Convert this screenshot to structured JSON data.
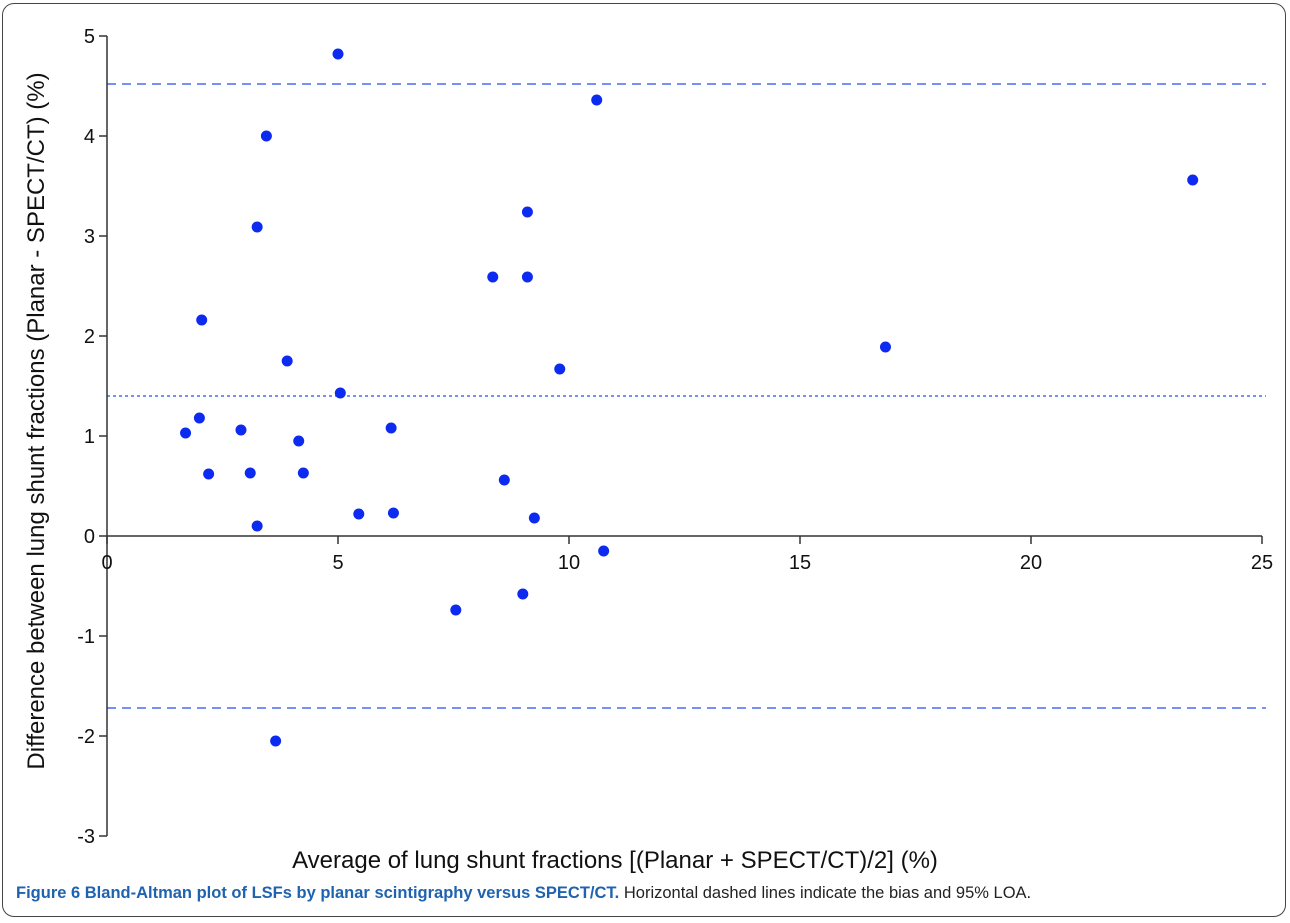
{
  "figure": {
    "caption_title": "Figure 6 Bland-Altman plot of LSFs by planar scintigraphy versus SPECT/CT.",
    "caption_text": "Horizontal dashed lines indicate the bias and 95% LOA."
  },
  "colors": {
    "points": "#0d2bf0",
    "reference_lines": "#4a6cf0",
    "axis": "#333333",
    "caption_title": "#1f63b0"
  },
  "chart_data": {
    "type": "scatter",
    "title": "",
    "xlabel": "Average of lung shunt fractions [(Planar + SPECT/CT)/2] (%)",
    "ylabel": "Difference between lung shunt fractions (Planar - SPECT/CT) (%)",
    "xlim": [
      0,
      25
    ],
    "ylim": [
      -3,
      5
    ],
    "x_ticks": [
      0,
      5,
      10,
      15,
      20,
      25
    ],
    "y_ticks": [
      5,
      4,
      3,
      2,
      1,
      0,
      -1,
      -2,
      -3
    ],
    "grid": false,
    "reference_lines": [
      {
        "y": 4.52,
        "style": "dashed"
      },
      {
        "y": 1.4,
        "style": "dotted"
      },
      {
        "y": -1.72,
        "style": "dashed"
      }
    ],
    "points": [
      {
        "x": 1.7,
        "y": 1.03
      },
      {
        "x": 2.0,
        "y": 1.18
      },
      {
        "x": 2.05,
        "y": 2.16
      },
      {
        "x": 2.2,
        "y": 0.62
      },
      {
        "x": 2.9,
        "y": 1.06
      },
      {
        "x": 3.1,
        "y": 0.63
      },
      {
        "x": 3.25,
        "y": 3.09
      },
      {
        "x": 3.25,
        "y": 0.1
      },
      {
        "x": 3.45,
        "y": 4.0
      },
      {
        "x": 3.65,
        "y": -2.05
      },
      {
        "x": 3.9,
        "y": 1.75
      },
      {
        "x": 4.15,
        "y": 0.95
      },
      {
        "x": 4.25,
        "y": 0.63
      },
      {
        "x": 5.0,
        "y": 4.82
      },
      {
        "x": 5.05,
        "y": 1.43
      },
      {
        "x": 5.45,
        "y": 0.22
      },
      {
        "x": 6.15,
        "y": 1.08
      },
      {
        "x": 6.2,
        "y": 0.23
      },
      {
        "x": 7.55,
        "y": -0.74
      },
      {
        "x": 8.35,
        "y": 2.59
      },
      {
        "x": 8.6,
        "y": 0.56
      },
      {
        "x": 9.0,
        "y": -0.58
      },
      {
        "x": 9.1,
        "y": 3.24
      },
      {
        "x": 9.1,
        "y": 2.59
      },
      {
        "x": 9.25,
        "y": 0.18
      },
      {
        "x": 9.8,
        "y": 1.67
      },
      {
        "x": 10.6,
        "y": 4.36
      },
      {
        "x": 10.75,
        "y": -0.15
      },
      {
        "x": 16.85,
        "y": 1.89
      },
      {
        "x": 23.5,
        "y": 3.56
      }
    ]
  }
}
